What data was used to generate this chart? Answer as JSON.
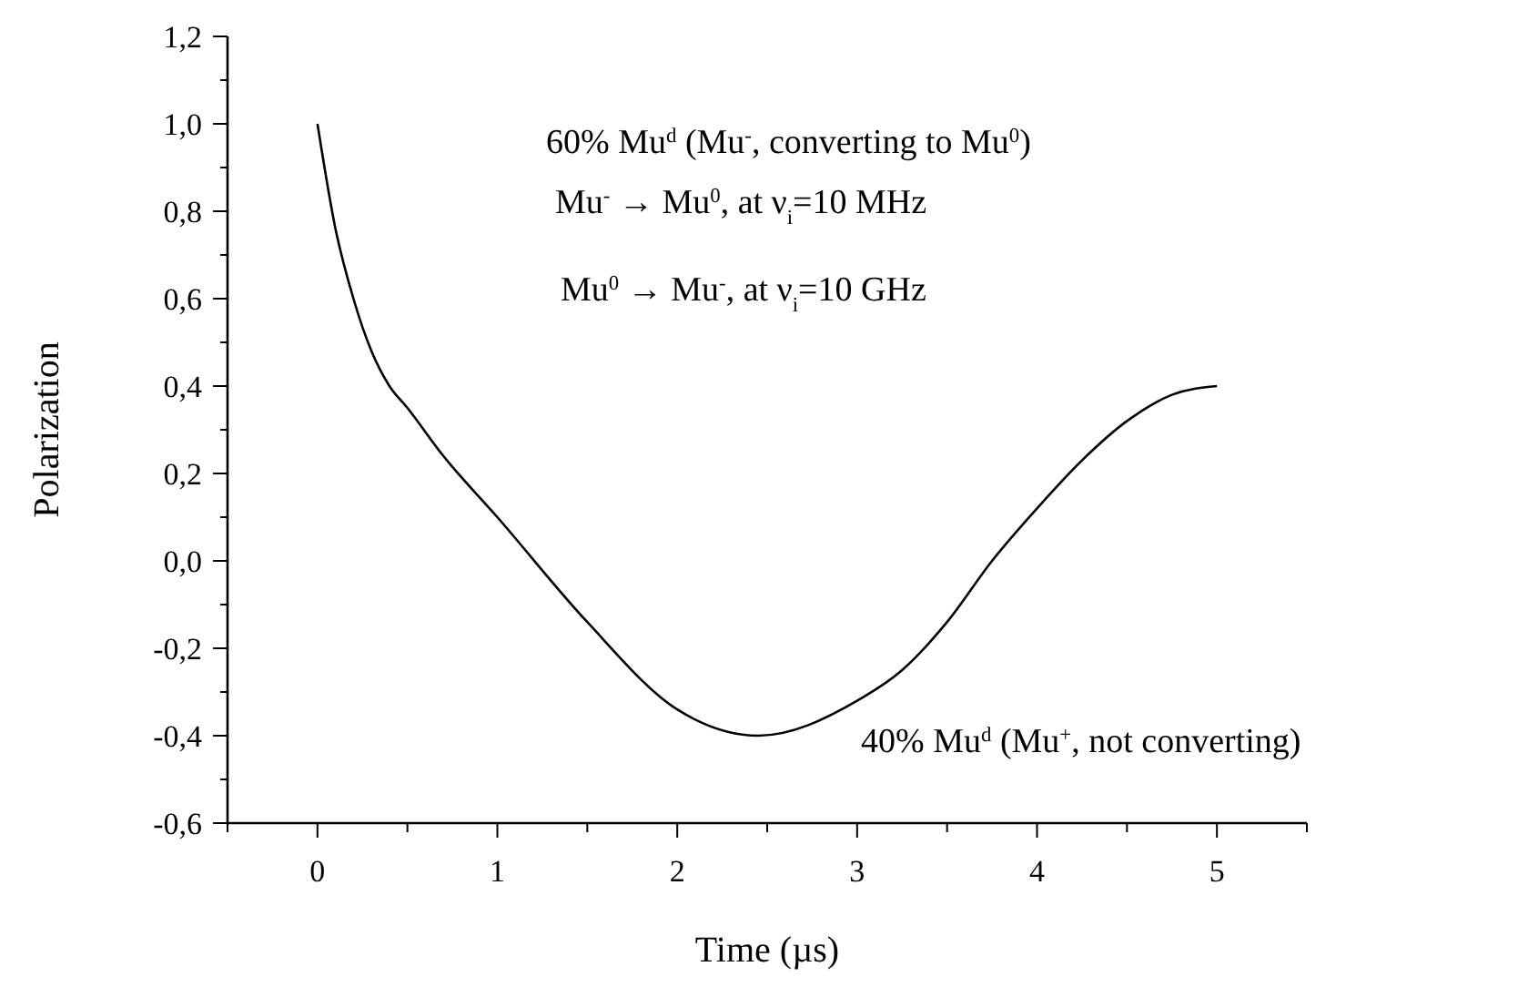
{
  "chart_data": {
    "type": "line",
    "xlabel": "Time (µs)",
    "ylabel": "Polarization",
    "x": [
      0,
      0.1,
      0.2,
      0.3,
      0.4,
      0.5,
      0.7,
      1.0,
      1.5,
      2.0,
      2.45,
      3.0,
      3.25,
      3.5,
      3.75,
      4.0,
      4.25,
      4.5,
      4.75,
      5.0
    ],
    "series": [
      {
        "color": "#000000",
        "values": [
          1.0,
          0.76,
          0.6,
          0.48,
          0.4,
          0.35,
          0.24,
          0.1,
          -0.14,
          -0.34,
          -0.4,
          -0.32,
          -0.25,
          -0.14,
          0.0,
          0.12,
          0.23,
          0.32,
          0.38,
          0.4
        ]
      }
    ],
    "xlim": [
      -0.5,
      5.5
    ],
    "xticks": [
      0,
      {
        "value": 0.5,
        "label": null
      },
      1,
      {
        "value": 1.5,
        "label": null
      },
      2,
      {
        "value": 2.5,
        "label": null
      },
      3,
      {
        "value": 3.5,
        "label": null
      },
      4,
      {
        "value": 4.5,
        "label": null
      },
      5
    ],
    "ylim": [
      -0.6,
      1.2
    ],
    "yticks": [
      {
        "value": -0.6,
        "label": "-0,6"
      },
      {
        "value": -0.4,
        "label": "-0,4"
      },
      {
        "value": -0.2,
        "label": "-0,2"
      },
      {
        "value": 0,
        "label": "0,0"
      },
      {
        "value": 0.2,
        "label": "0,2"
      },
      {
        "value": 0.4,
        "label": "0,4"
      },
      {
        "value": 0.6,
        "label": "0,6"
      },
      {
        "value": 0.8,
        "label": "0,8"
      },
      {
        "value": 1.0,
        "label": "1,0"
      },
      {
        "value": 1.2,
        "label": "1,2"
      }
    ],
    "annotations": [
      "60% Mu$^{d}$ (Mu$^{-}$, converting to Mu$^{0}$)",
      "Mu$^{-}$ → Mu$^{0}$, at ν$_{i}$=10 MHz",
      "Mu$^{0}$ → Mu$^{-}$, at ν$_{i}$=10 GHz",
      "40% Mu$^{d}$ (Mu$^{+}$, not converting)"
    ],
    "grid": false,
    "marker": "none",
    "line_style": "solid"
  }
}
